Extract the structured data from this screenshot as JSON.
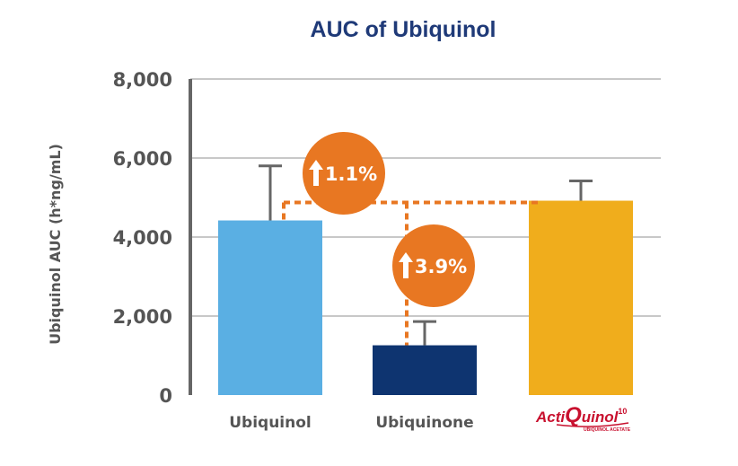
{
  "chart_data": {
    "type": "bar",
    "title": "AUC of Ubiquinol",
    "ylabel": "Ubiquinol AUC (h*ng/mL)",
    "xlabel": "",
    "ylim": [
      0,
      8000
    ],
    "yticks": [
      0,
      2000,
      4000,
      6000,
      8000
    ],
    "ytick_labels": [
      "0",
      "2,000",
      "4,000",
      "6,000",
      "8,000"
    ],
    "grid": true,
    "categories": [
      "Ubiquinol",
      "Ubiquinone",
      "ActiQuinol10"
    ],
    "values": [
      4420,
      1260,
      4920
    ],
    "error_upper": [
      5800,
      1860,
      5420
    ],
    "colors": [
      "#5aafe3",
      "#0e3470",
      "#f0ad1c"
    ],
    "annotations": [
      {
        "label": "1.1%",
        "arrow": "up",
        "compare": [
          "Ubiquinol",
          "ActiQuinol10"
        ]
      },
      {
        "label": "3.9%",
        "arrow": "up",
        "compare": [
          "Ubiquinone",
          "ActiQuinol10"
        ]
      }
    ],
    "annotation_color": "#e87722"
  },
  "logo": {
    "text_before": "Acti",
    "text_q": "Q",
    "text_after": "uinol",
    "superscript": "10",
    "subtitle": "UBIQUINOL ACETATE"
  }
}
